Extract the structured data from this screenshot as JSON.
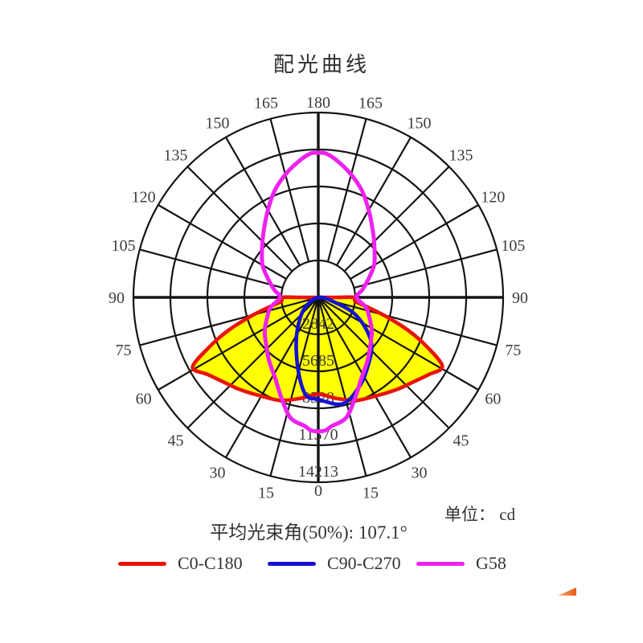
{
  "title": "配光曲线",
  "unit_note": "单位： cd",
  "beam_note": "平均光束角(50%): 107.1°",
  "chart_data": {
    "type": "polar_photometric",
    "title": "配光曲线",
    "unit": "cd",
    "beam_angle_50pct_deg": 107.1,
    "angle_ticks_deg": [
      0,
      15,
      30,
      45,
      60,
      75,
      90,
      105,
      120,
      135,
      150,
      165,
      180
    ],
    "angle_ticks_mirrored": true,
    "ring_values_cd": [
      2842,
      5685,
      8528,
      11370,
      14213
    ],
    "r_max_cd": 14213,
    "grid_color": "#141414",
    "label_color": "#3c3c3c",
    "series": [
      {
        "name": "C0-C180",
        "color": "#e8140c",
        "fill": "#ffff00",
        "closure": "axis",
        "points_deg_cd": [
          [
            -90,
            2780
          ],
          [
            -84,
            2860
          ],
          [
            -79,
            3830
          ],
          [
            -74,
            5540
          ],
          [
            -70,
            7300
          ],
          [
            -66,
            9000
          ],
          [
            -61,
            11050
          ],
          [
            -55,
            10350
          ],
          [
            -48,
            9750
          ],
          [
            -40,
            9280
          ],
          [
            -30,
            8760
          ],
          [
            -20,
            8430
          ],
          [
            -10,
            7880
          ],
          [
            0,
            7450
          ],
          [
            10,
            7880
          ],
          [
            20,
            8430
          ],
          [
            30,
            8760
          ],
          [
            40,
            9280
          ],
          [
            48,
            9750
          ],
          [
            55,
            10350
          ],
          [
            61,
            10900
          ],
          [
            66,
            9000
          ],
          [
            70,
            7300
          ],
          [
            74,
            5540
          ],
          [
            79,
            3830
          ],
          [
            84,
            2860
          ],
          [
            90,
            2780
          ]
        ]
      },
      {
        "name": "C90-C270",
        "color": "#1512d2",
        "fill": "none",
        "closure": "center",
        "points_deg_cd": [
          [
            -50,
            1450
          ],
          [
            -33,
            2950
          ],
          [
            -22,
            4510
          ],
          [
            -13,
            6360
          ],
          [
            -7,
            7600
          ],
          [
            0,
            7850
          ],
          [
            13,
            8400
          ],
          [
            25,
            7520
          ],
          [
            36,
            6500
          ],
          [
            48,
            5520
          ],
          [
            57,
            4340
          ],
          [
            66,
            2990
          ],
          [
            72,
            1560
          ]
        ]
      },
      {
        "name": "G58",
        "color": "#ee22ee",
        "fill": "none",
        "closure": "loop",
        "points_deg_cd": [
          [
            0,
            10300
          ],
          [
            3,
            10250
          ],
          [
            6,
            9950
          ],
          [
            13,
            9500
          ],
          [
            20,
            8250
          ],
          [
            28,
            7050
          ],
          [
            38,
            6150
          ],
          [
            48,
            5400
          ],
          [
            58,
            4850
          ],
          [
            68,
            4250
          ],
          [
            78,
            3750
          ],
          [
            90,
            2950
          ],
          [
            100,
            3450
          ],
          [
            110,
            4100
          ],
          [
            120,
            4950
          ],
          [
            130,
            5650
          ],
          [
            140,
            6550
          ],
          [
            150,
            7750
          ],
          [
            158,
            8900
          ],
          [
            166,
            9900
          ],
          [
            173,
            10700
          ],
          [
            177,
            11080
          ],
          [
            180,
            11120
          ],
          [
            -177,
            11080
          ],
          [
            -173,
            10700
          ],
          [
            -166,
            9900
          ],
          [
            -158,
            8900
          ],
          [
            -150,
            7750
          ],
          [
            -140,
            6550
          ],
          [
            -130,
            5650
          ],
          [
            -120,
            4950
          ],
          [
            -110,
            4100
          ],
          [
            -100,
            3450
          ],
          [
            -90,
            2950
          ],
          [
            -78,
            3750
          ],
          [
            -68,
            4250
          ],
          [
            -58,
            4850
          ],
          [
            -48,
            5400
          ],
          [
            -38,
            6150
          ],
          [
            -28,
            7050
          ],
          [
            -20,
            8250
          ],
          [
            -13,
            9500
          ],
          [
            -6,
            9950
          ],
          [
            -3,
            10250
          ]
        ]
      }
    ],
    "legend": [
      {
        "label": "C0-C180",
        "color": "#e8140c"
      },
      {
        "label": "C90-C270",
        "color": "#1512d2"
      },
      {
        "label": "G58",
        "color": "#ee22ee"
      }
    ]
  },
  "decor": {
    "corner_wedge_gradient_left": "#f5ad76",
    "corner_wedge_gradient_right": "#e55a12"
  }
}
